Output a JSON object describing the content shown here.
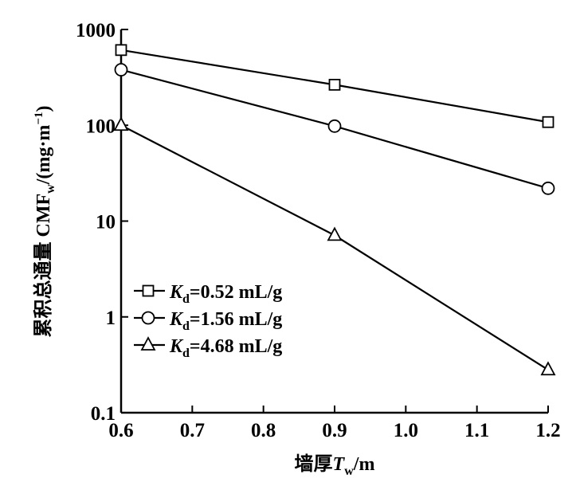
{
  "chart_data": {
    "type": "line",
    "title": "",
    "xlabel": {
      "prefix": "墙厚",
      "var": "T",
      "sub": "w",
      "suffix": "/m"
    },
    "ylabel": {
      "prefix": "累积总通量 CMF",
      "sub": "w",
      "mid": "/(mg·m",
      "sup": "−1",
      "suffix": ")"
    },
    "xlim": [
      0.6,
      1.2
    ],
    "ylim": [
      0.1,
      1000
    ],
    "yscale": "log",
    "x_ticks": [
      "0.6",
      "0.7",
      "0.8",
      "0.9",
      "1.0",
      "1.1",
      "1.2"
    ],
    "x_tick_values": [
      0.6,
      0.7,
      0.8,
      0.9,
      1.0,
      1.1,
      1.2
    ],
    "y_ticks": [
      "0.1",
      "1",
      "10",
      "100",
      "1000"
    ],
    "y_tick_values": [
      0.1,
      1,
      10,
      100,
      1000
    ],
    "legend_position": "bottom-left",
    "x": [
      0.6,
      0.9,
      1.2
    ],
    "series": [
      {
        "name": "Kd=0.52 mL/g",
        "var": "K",
        "sub": "d",
        "label": "=0.52 mL/g",
        "marker": "square",
        "values": [
          610,
          265,
          108
        ]
      },
      {
        "name": "Kd=1.56 mL/g",
        "var": "K",
        "sub": "d",
        "label": "=1.56 mL/g",
        "marker": "circle",
        "values": [
          380,
          98,
          22
        ]
      },
      {
        "name": "Kd=4.68 mL/g",
        "var": "K",
        "sub": "d",
        "label": "=4.68 mL/g",
        "marker": "triangle",
        "values": [
          100,
          7.1,
          0.28
        ]
      }
    ]
  }
}
